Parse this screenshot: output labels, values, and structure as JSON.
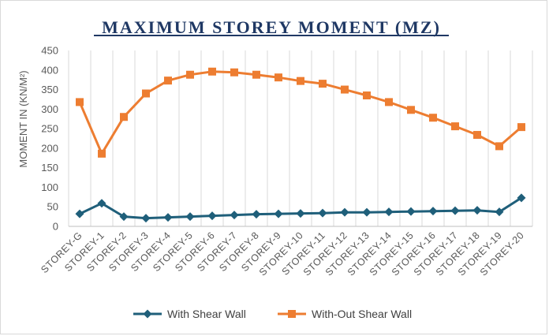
{
  "chart_data": {
    "type": "line",
    "title": "MAXIMUM STOREY MOMENT (MZ)",
    "xlabel": "",
    "ylabel": "MOMENT IN (KN/M²)",
    "ylim": [
      0,
      450
    ],
    "yticks": [
      0,
      50,
      100,
      150,
      200,
      250,
      300,
      350,
      400,
      450
    ],
    "grid": "vertical",
    "legend_position": "bottom",
    "categories": [
      "STOREY-G",
      "STOREY-1",
      "STOREY-2",
      "STOREY-3",
      "STOREY-4",
      "STOREY-5",
      "STOREY-6",
      "STOREY-7",
      "STOREY-8",
      "STOREY-9",
      "STOREY-10",
      "STOREY-11",
      "STOREY-12",
      "STOREY-13",
      "STOREY-14",
      "STOREY-15",
      "STOREY-16",
      "STOREY-17",
      "STOREY-18",
      "STOREY-19",
      "STOREY-20"
    ],
    "series": [
      {
        "name": "With Shear Wall",
        "color": "#1f5f7a",
        "marker": "diamond",
        "values": [
          32,
          59,
          25,
          21,
          23,
          25,
          27,
          29,
          31,
          32,
          33,
          34,
          36,
          36,
          37,
          38,
          39,
          40,
          41,
          37,
          73
        ]
      },
      {
        "name": "With-Out Shear Wall",
        "color": "#ed7d31",
        "marker": "square",
        "values": [
          318,
          186,
          280,
          340,
          373,
          388,
          396,
          394,
          388,
          381,
          372,
          365,
          350,
          335,
          318,
          298,
          278,
          256,
          234,
          205,
          254
        ]
      }
    ]
  }
}
